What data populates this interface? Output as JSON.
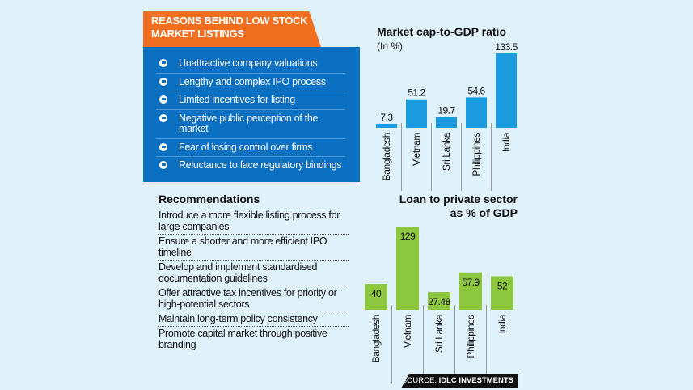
{
  "reasons": {
    "title": "REASONS BEHIND LOW STOCK MARKET LISTINGS",
    "bullet_icon": "circular-arrow-bullet-icon",
    "items": [
      "Unattractive company valuations",
      "Lengthy and complex IPO process",
      "Limited incentives for listing",
      "Negative public perception of the market",
      "Fear of losing control over firms",
      "Reluctance to face regulatory bindings"
    ]
  },
  "recommendations": {
    "title": "Recommendations",
    "items": [
      "Introduce a more flexible listing process for large companies",
      "Ensure a shorter and more efficient IPO timeline",
      "Develop and implement standardised documentation guidelines",
      "Offer attractive tax incentives for priority or high-potential sectors",
      "Maintain long-term policy consistency",
      "Promote capital market through positive branding"
    ]
  },
  "source": {
    "label": "SOURCE:",
    "name": "IDLC INVESTMENTS"
  },
  "colors": {
    "background": "#dff1fb",
    "header": "#f26f21",
    "panel": "#0b6fc2",
    "bar1": "#1a9be0",
    "bar2": "#8dc63f"
  },
  "chart_data": [
    {
      "type": "bar",
      "title": "Market cap-to-GDP ratio",
      "subtitle": "(In %)",
      "categories": [
        "Bangladesh",
        "Vietnam",
        "Sri Lanka",
        "Philippines",
        "India"
      ],
      "values": [
        7.3,
        51.2,
        19.7,
        54.6,
        133.5
      ],
      "labels": [
        "7.3",
        "51.2",
        "19.7",
        "54.6",
        "133.5"
      ],
      "grid": false
    },
    {
      "type": "bar",
      "title": "Loan to private sector as % of GDP",
      "title_lines": [
        "Loan to private sector",
        "as % of GDP"
      ],
      "categories": [
        "Bangladesh",
        "Vietnam",
        "Sri Lanka",
        "Philippines",
        "India"
      ],
      "values": [
        40,
        129,
        27.48,
        57.9,
        52
      ],
      "labels": [
        "40",
        "129",
        "27.48",
        "57.9",
        "52"
      ],
      "grid": false
    }
  ]
}
